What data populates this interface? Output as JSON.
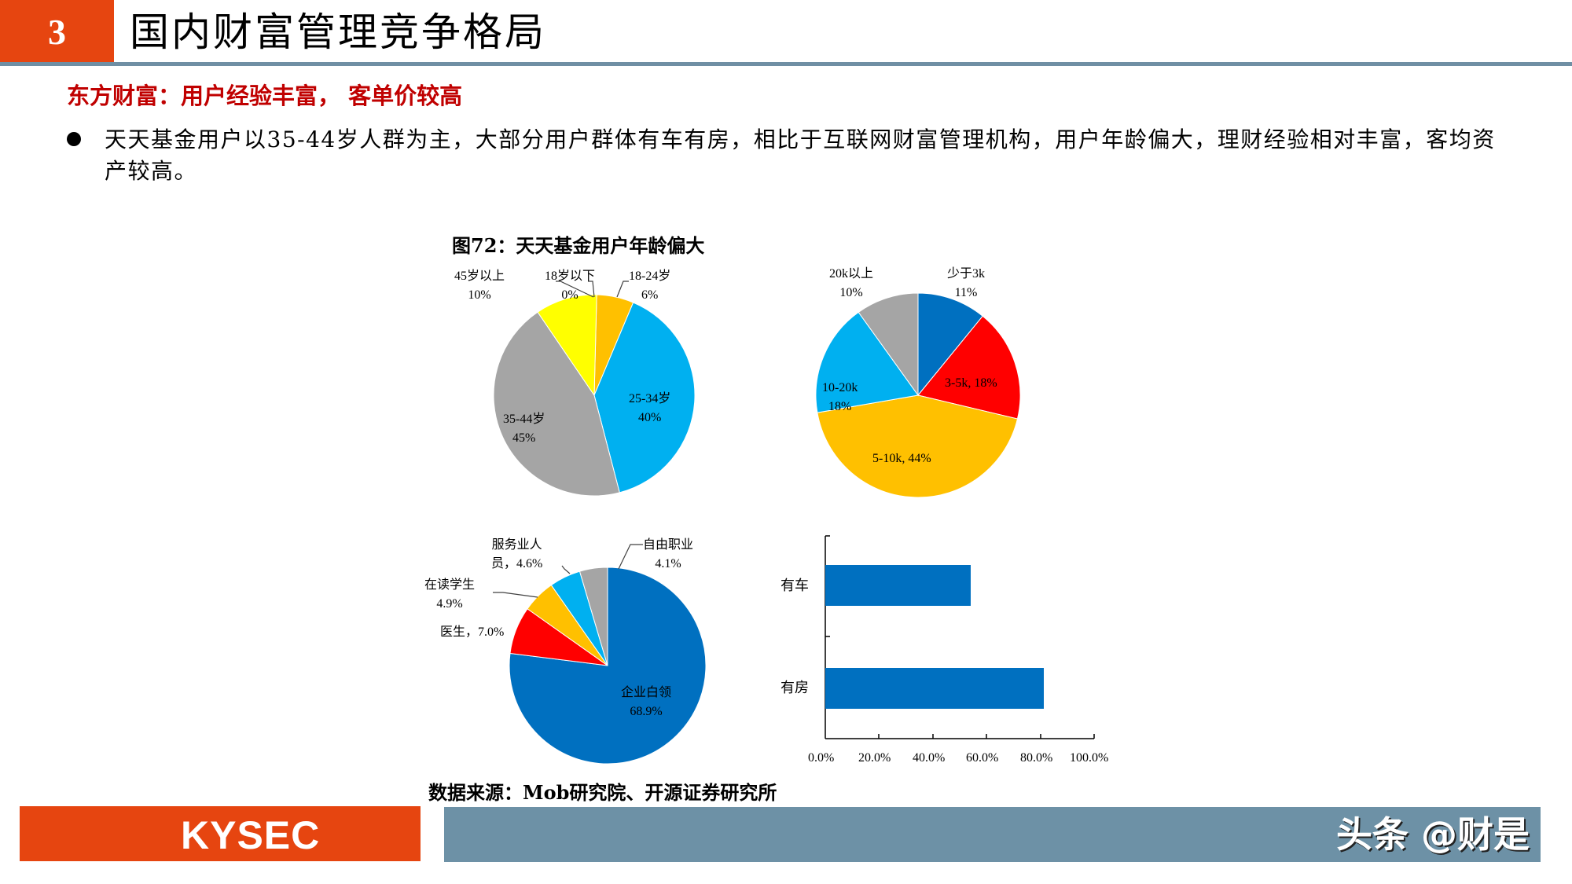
{
  "header": {
    "section_number": "3",
    "title": "国内财富管理竞争格局"
  },
  "subtitle": "东方财富：用户经验丰富， 客单价较高",
  "bullet": "天天基金用户以35-44岁人群为主，大部分用户群体有车有房，相比于互联网财富管理机构，用户年龄偏大，理财经验相对丰富，客均资产较高。",
  "figure_title": "图72：天天基金用户年龄偏大",
  "source": "数据来源：Mob研究院、开源证券研究所",
  "footer": {
    "logo": "KYSEC",
    "watermark": "头条 @财是"
  },
  "colors": {
    "brand_orange": "#e64510",
    "rule_gray_blue": "#6f8fa4",
    "subtitle_red": "#c00000",
    "footer_blue": "#6d91a6"
  },
  "chart_data": [
    {
      "type": "pie",
      "title": "用户年龄分布",
      "categories": [
        "18岁以下",
        "18-24岁",
        "25-34岁",
        "35-44岁",
        "45岁以上"
      ],
      "values": [
        0,
        6,
        40,
        45,
        10
      ],
      "labels": [
        "18岁以下，0%",
        "18-24岁，6%",
        "25-34岁，40%",
        "35-44岁，45%",
        "45岁以上，10%"
      ],
      "colors": [
        "#c00000",
        "#ffc000",
        "#00b0f0",
        "#a5a5a5",
        "#ffff00"
      ]
    },
    {
      "type": "pie",
      "title": "用户收入分布",
      "categories": [
        "少于3k",
        "3-5k",
        "5-10k",
        "10-20k",
        "20k以上"
      ],
      "values": [
        11,
        18,
        44,
        18,
        10
      ],
      "labels": [
        "少于3k，11%",
        "3-5k, 18%",
        "5-10k, 44%",
        "10-20k，18%",
        "20k以上，10%"
      ],
      "colors": [
        "#0070c0",
        "#ff0000",
        "#ffc000",
        "#00b0f0",
        "#a5a5a5"
      ]
    },
    {
      "type": "pie",
      "title": "用户职业分布",
      "categories": [
        "企业白领",
        "医生",
        "在读学生",
        "服务业人员",
        "自由职业"
      ],
      "values": [
        68.9,
        7.0,
        4.9,
        4.6,
        4.1
      ],
      "labels": [
        "企业白领，68.9%",
        "医生，7.0%",
        "在读学生，4.9%",
        "服务业人员，4.6%",
        "自由职业，4.1%"
      ],
      "colors": [
        "#0070c0",
        "#ff0000",
        "#ffc000",
        "#00b0f0",
        "#a5a5a5"
      ]
    },
    {
      "type": "bar",
      "orientation": "horizontal",
      "categories": [
        "有车",
        "有房"
      ],
      "values": [
        54.1,
        81.3
      ],
      "xlabel": "",
      "ylabel": "",
      "xlim": [
        0,
        100
      ],
      "xticks": [
        "0.0%",
        "20.0%",
        "40.0%",
        "60.0%",
        "80.0%",
        "100.0%"
      ],
      "color": "#0070c0",
      "grid": false
    }
  ]
}
